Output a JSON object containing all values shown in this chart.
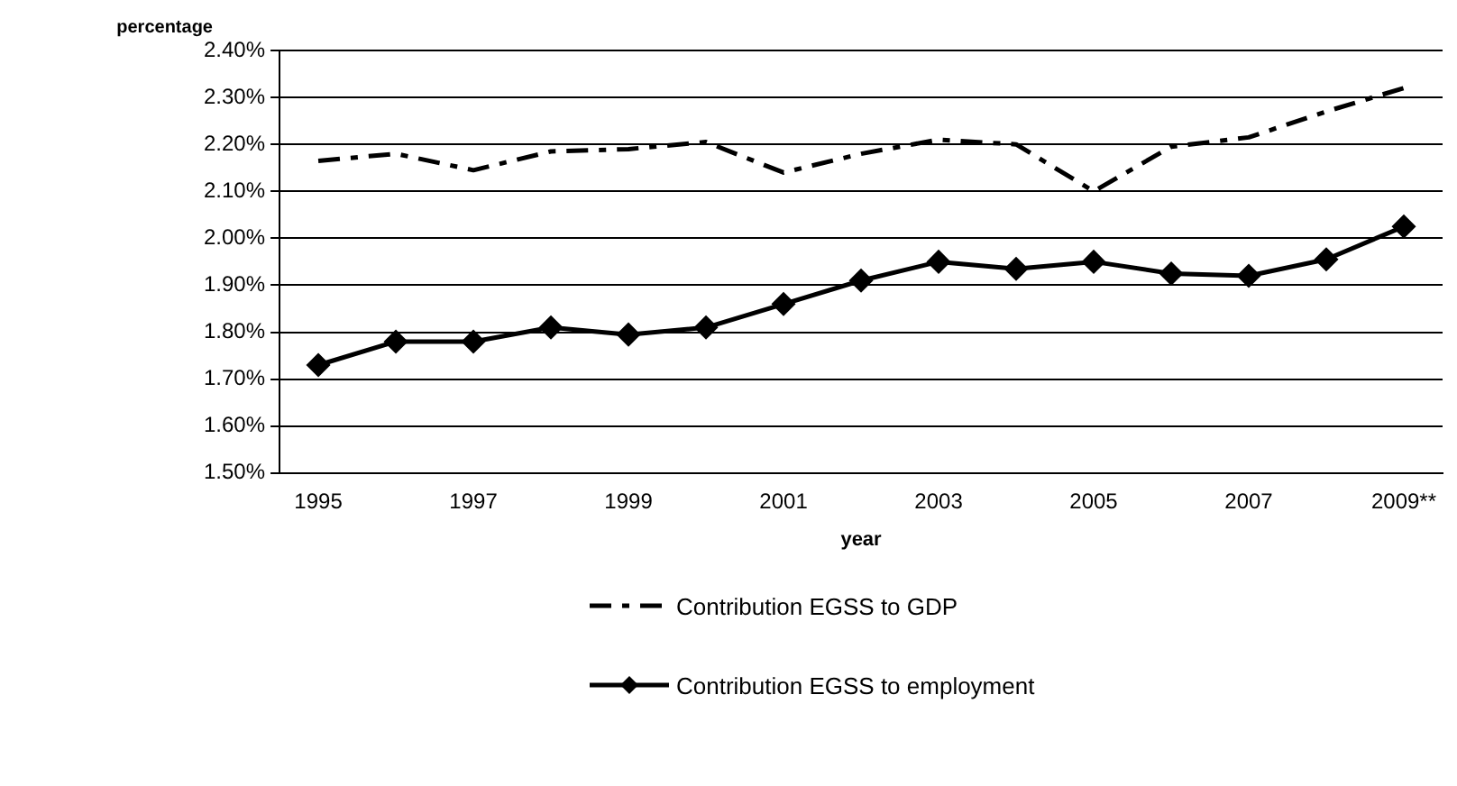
{
  "chart_data": {
    "type": "line",
    "ylabel": "percentage",
    "xlabel": "year",
    "categories": [
      "1995",
      null,
      "1997",
      null,
      "1999",
      null,
      "2001",
      null,
      "2003",
      null,
      "2005",
      null,
      "2007",
      null,
      "2009**"
    ],
    "series": [
      {
        "name": "Contribution EGSS to GDP",
        "color": "#000000",
        "line_style": "dashed",
        "marker": "none",
        "values": [
          2.165,
          2.18,
          2.145,
          2.185,
          2.19,
          2.205,
          2.14,
          2.18,
          2.21,
          2.2,
          2.1,
          2.195,
          2.215,
          2.27,
          2.32
        ]
      },
      {
        "name": "Contribution EGSS to employment",
        "color": "#000000",
        "line_style": "solid",
        "marker": "diamond",
        "values": [
          1.73,
          1.78,
          1.78,
          1.81,
          1.795,
          1.81,
          1.86,
          1.91,
          1.95,
          1.935,
          1.95,
          1.925,
          1.92,
          1.955,
          2.025
        ]
      }
    ],
    "ylim": [
      1.5,
      2.4
    ],
    "yticks": [
      {
        "value": 1.5,
        "label": "1.50%"
      },
      {
        "value": 1.6,
        "label": "1.60%"
      },
      {
        "value": 1.7,
        "label": "1.70%"
      },
      {
        "value": 1.8,
        "label": "1.80%"
      },
      {
        "value": 1.9,
        "label": "1.90%"
      },
      {
        "value": 2.0,
        "label": "2.00%"
      },
      {
        "value": 2.1,
        "label": "2.10%"
      },
      {
        "value": 2.2,
        "label": "2.20%"
      },
      {
        "value": 2.3,
        "label": "2.30%"
      },
      {
        "value": 2.4,
        "label": "2.40%"
      }
    ],
    "grid": "y",
    "legend": "bottom"
  }
}
